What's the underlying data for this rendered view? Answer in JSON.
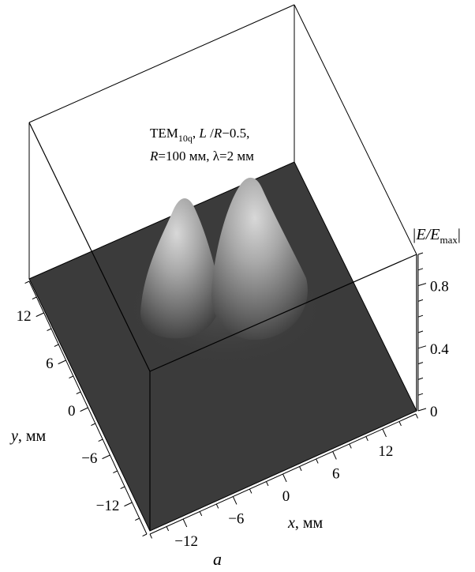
{
  "chart_data": {
    "type": "surface",
    "annotation": {
      "line1": {
        "mode": "TEM",
        "mode_sub": "10q",
        "ratio_label": "L",
        "ratio_sep": " /",
        "ratio_den": "R",
        "ratio_value": "−0.5,"
      },
      "line2": {
        "r_var": "R",
        "r_value": "=100 мм, λ=2 мм"
      }
    },
    "x_axis": {
      "var": "x",
      "unit": ", мм",
      "ticks": [
        "−12",
        "−6",
        "0",
        "6",
        "12"
      ],
      "tick_values": [
        -12,
        -6,
        0,
        6,
        12
      ],
      "range": [
        -16,
        16
      ]
    },
    "y_axis": {
      "var": "y",
      "unit": ", мм",
      "ticks": [
        "12",
        "6",
        "0",
        "−6",
        "−12"
      ],
      "tick_values": [
        12,
        6,
        0,
        -6,
        -12
      ],
      "range": [
        -16,
        16
      ]
    },
    "z_axis": {
      "label_main": "|E/E",
      "label_sub": "max",
      "label_end": "|",
      "ticks": [
        "0.8",
        "0.4",
        "0"
      ],
      "tick_values": [
        0.8,
        0.4,
        0
      ],
      "range": [
        0,
        1
      ]
    },
    "peaks": [
      {
        "x": -3.5,
        "y": 0,
        "z": 1.0
      },
      {
        "x": 3.5,
        "y": 0,
        "z": 1.0
      }
    ],
    "caption": "a"
  }
}
